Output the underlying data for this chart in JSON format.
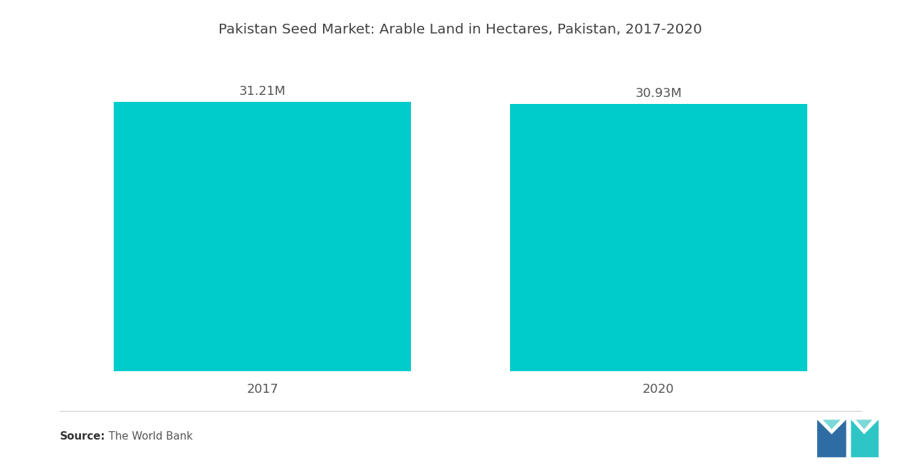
{
  "title": "Pakistan Seed Market: Arable Land in Hectares, Pakistan, 2017-2020",
  "categories": [
    "2017",
    "2020"
  ],
  "values": [
    31.21,
    30.93
  ],
  "value_labels": [
    "31.21M",
    "30.93M"
  ],
  "bar_color": "#00CCCC",
  "background_color": "#ffffff",
  "title_fontsize": 14.5,
  "label_fontsize": 13,
  "tick_fontsize": 13,
  "source_bold": "Source:",
  "source_normal": "   The World Bank",
  "ylim": [
    0,
    36
  ],
  "x_positions": [
    1,
    3
  ],
  "bar_width": 1.5,
  "xlim": [
    0,
    4
  ],
  "blue_color": "#2E6DA4",
  "teal_color": "#2DC5C5",
  "light_teal": "#7DD8D8"
}
